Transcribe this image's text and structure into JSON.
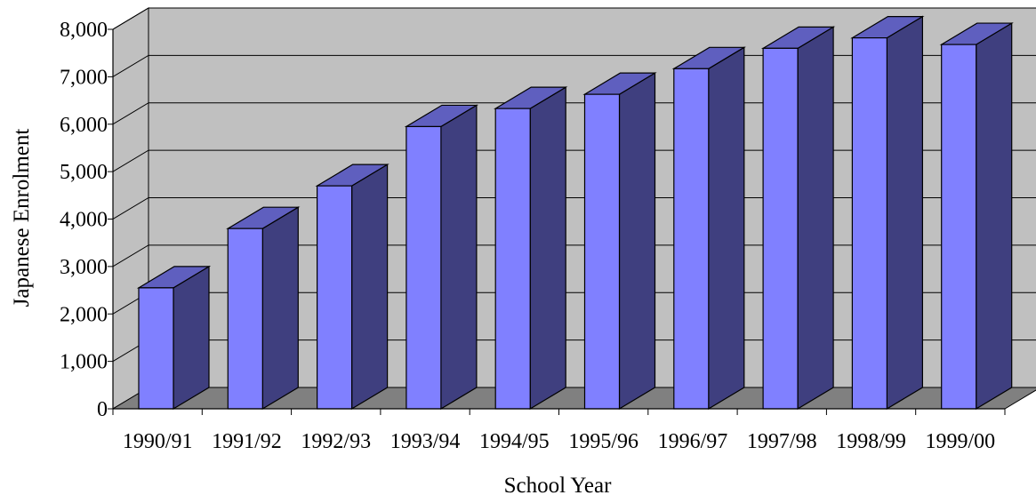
{
  "chart_data": {
    "type": "bar",
    "style": "3d-column",
    "title": "",
    "xlabel": "School Year",
    "ylabel": "Japanese Enrolment",
    "categories": [
      "1990/91",
      "1991/92",
      "1992/93",
      "1993/94",
      "1994/95",
      "1995/96",
      "1996/97",
      "1997/98",
      "1998/99",
      "1999/00"
    ],
    "values": [
      2550,
      3800,
      4700,
      5950,
      6330,
      6630,
      7170,
      7600,
      7820,
      7680
    ],
    "ylim": [
      0,
      8000
    ],
    "yticks": [
      "0",
      "1,000",
      "2,000",
      "3,000",
      "4,000",
      "5,000",
      "6,000",
      "7,000",
      "8,000"
    ],
    "grid": true,
    "legend": "none",
    "colors": {
      "bar_front": "#8080ff",
      "bar_side": "#3f3f7f",
      "bar_top": "#5f5fbf",
      "back_wall": "#c0c0c0",
      "floor": "#808080",
      "gridline": "#000000"
    }
  }
}
